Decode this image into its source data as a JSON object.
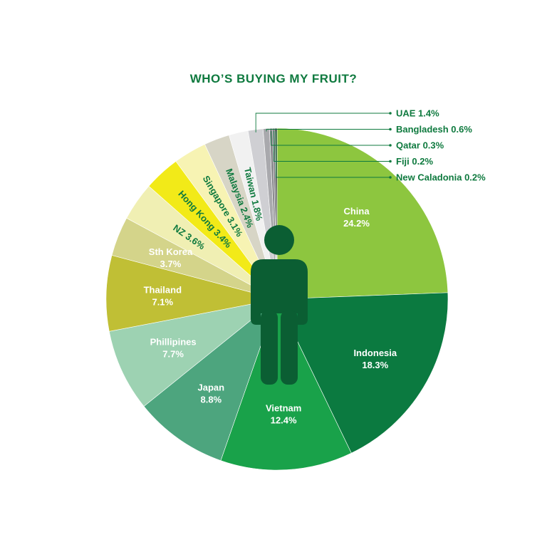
{
  "chart_data": {
    "type": "pie",
    "title": "WHO’S BUYING MY FRUIT?",
    "slices": [
      {
        "name": "China",
        "value": 24.2,
        "label": "24.2%",
        "color": "#8dc63f",
        "label_color": "#ffffff",
        "style": "inside"
      },
      {
        "name": "Indonesia",
        "value": 18.3,
        "label": "18.3%",
        "color": "#0b7a40",
        "label_color": "#ffffff",
        "style": "inside"
      },
      {
        "name": "Vietnam",
        "value": 12.4,
        "label": "12.4%",
        "color": "#19a24a",
        "label_color": "#ffffff",
        "style": "inside"
      },
      {
        "name": "Japan",
        "value": 8.8,
        "label": "8.8%",
        "color": "#4da57e",
        "label_color": "#ffffff",
        "style": "inside"
      },
      {
        "name": "Phillipines",
        "value": 7.7,
        "label": "7.7%",
        "color": "#9dd2b2",
        "label_color": "#ffffff",
        "style": "inside"
      },
      {
        "name": "Thailand",
        "value": 7.1,
        "label": "7.1%",
        "color": "#c0bf35",
        "label_color": "#ffffff",
        "style": "inside"
      },
      {
        "name": "Sth Korea",
        "value": 3.7,
        "label": "3.7%",
        "color": "#d4d48a",
        "label_color": "#ffffff",
        "style": "inside"
      },
      {
        "name": "NZ",
        "value": 3.6,
        "label": "NZ 3.6%",
        "color": "#f0efb3",
        "label_color": "#0f7a3f",
        "style": "radial"
      },
      {
        "name": "Hong Kong",
        "value": 3.4,
        "label": "Hong Kong 3.4%",
        "color": "#f2ea18",
        "label_color": "#0f7a3f",
        "style": "radial"
      },
      {
        "name": "Singapore",
        "value": 3.1,
        "label": "Singapore 3.1%",
        "color": "#f7f3b3",
        "label_color": "#0f7a3f",
        "style": "radial"
      },
      {
        "name": "Malaysia",
        "value": 2.4,
        "label": "Malaysia 2.4%",
        "color": "#d7d5c6",
        "label_color": "#0f7a3f",
        "style": "radial"
      },
      {
        "name": "Taiwan",
        "value": 1.8,
        "label": "Taiwan 1.8%",
        "color": "#f1f1f1",
        "label_color": "#0f7a3f",
        "style": "radial"
      },
      {
        "name": "UAE",
        "value": 1.4,
        "label": "UAE 1.4%",
        "color": "#cfcfd3",
        "label_color": "#0f7a3f",
        "style": "callout"
      },
      {
        "name": "Bangladesh",
        "value": 0.6,
        "label": "Bangladesh 0.6%",
        "color": "#a9a9ad",
        "label_color": "#0f7a3f",
        "style": "callout"
      },
      {
        "name": "Qatar",
        "value": 0.3,
        "label": "Qatar 0.3%",
        "color": "#8a8a8e",
        "label_color": "#0f7a3f",
        "style": "callout"
      },
      {
        "name": "Fiji",
        "value": 0.2,
        "label": "Fiji 0.2%",
        "color": "#6e6e72",
        "label_color": "#0f7a3f",
        "style": "callout"
      },
      {
        "name": "New Caladonia",
        "value": 0.2,
        "label": "New Caladonia 0.2%",
        "color": "#3c3c3f",
        "label_color": "#0f7a3f",
        "style": "callout"
      }
    ],
    "center_icon": "person-icon",
    "accent_color": "#0f7a3f",
    "figure_color": "#0b5e33"
  }
}
